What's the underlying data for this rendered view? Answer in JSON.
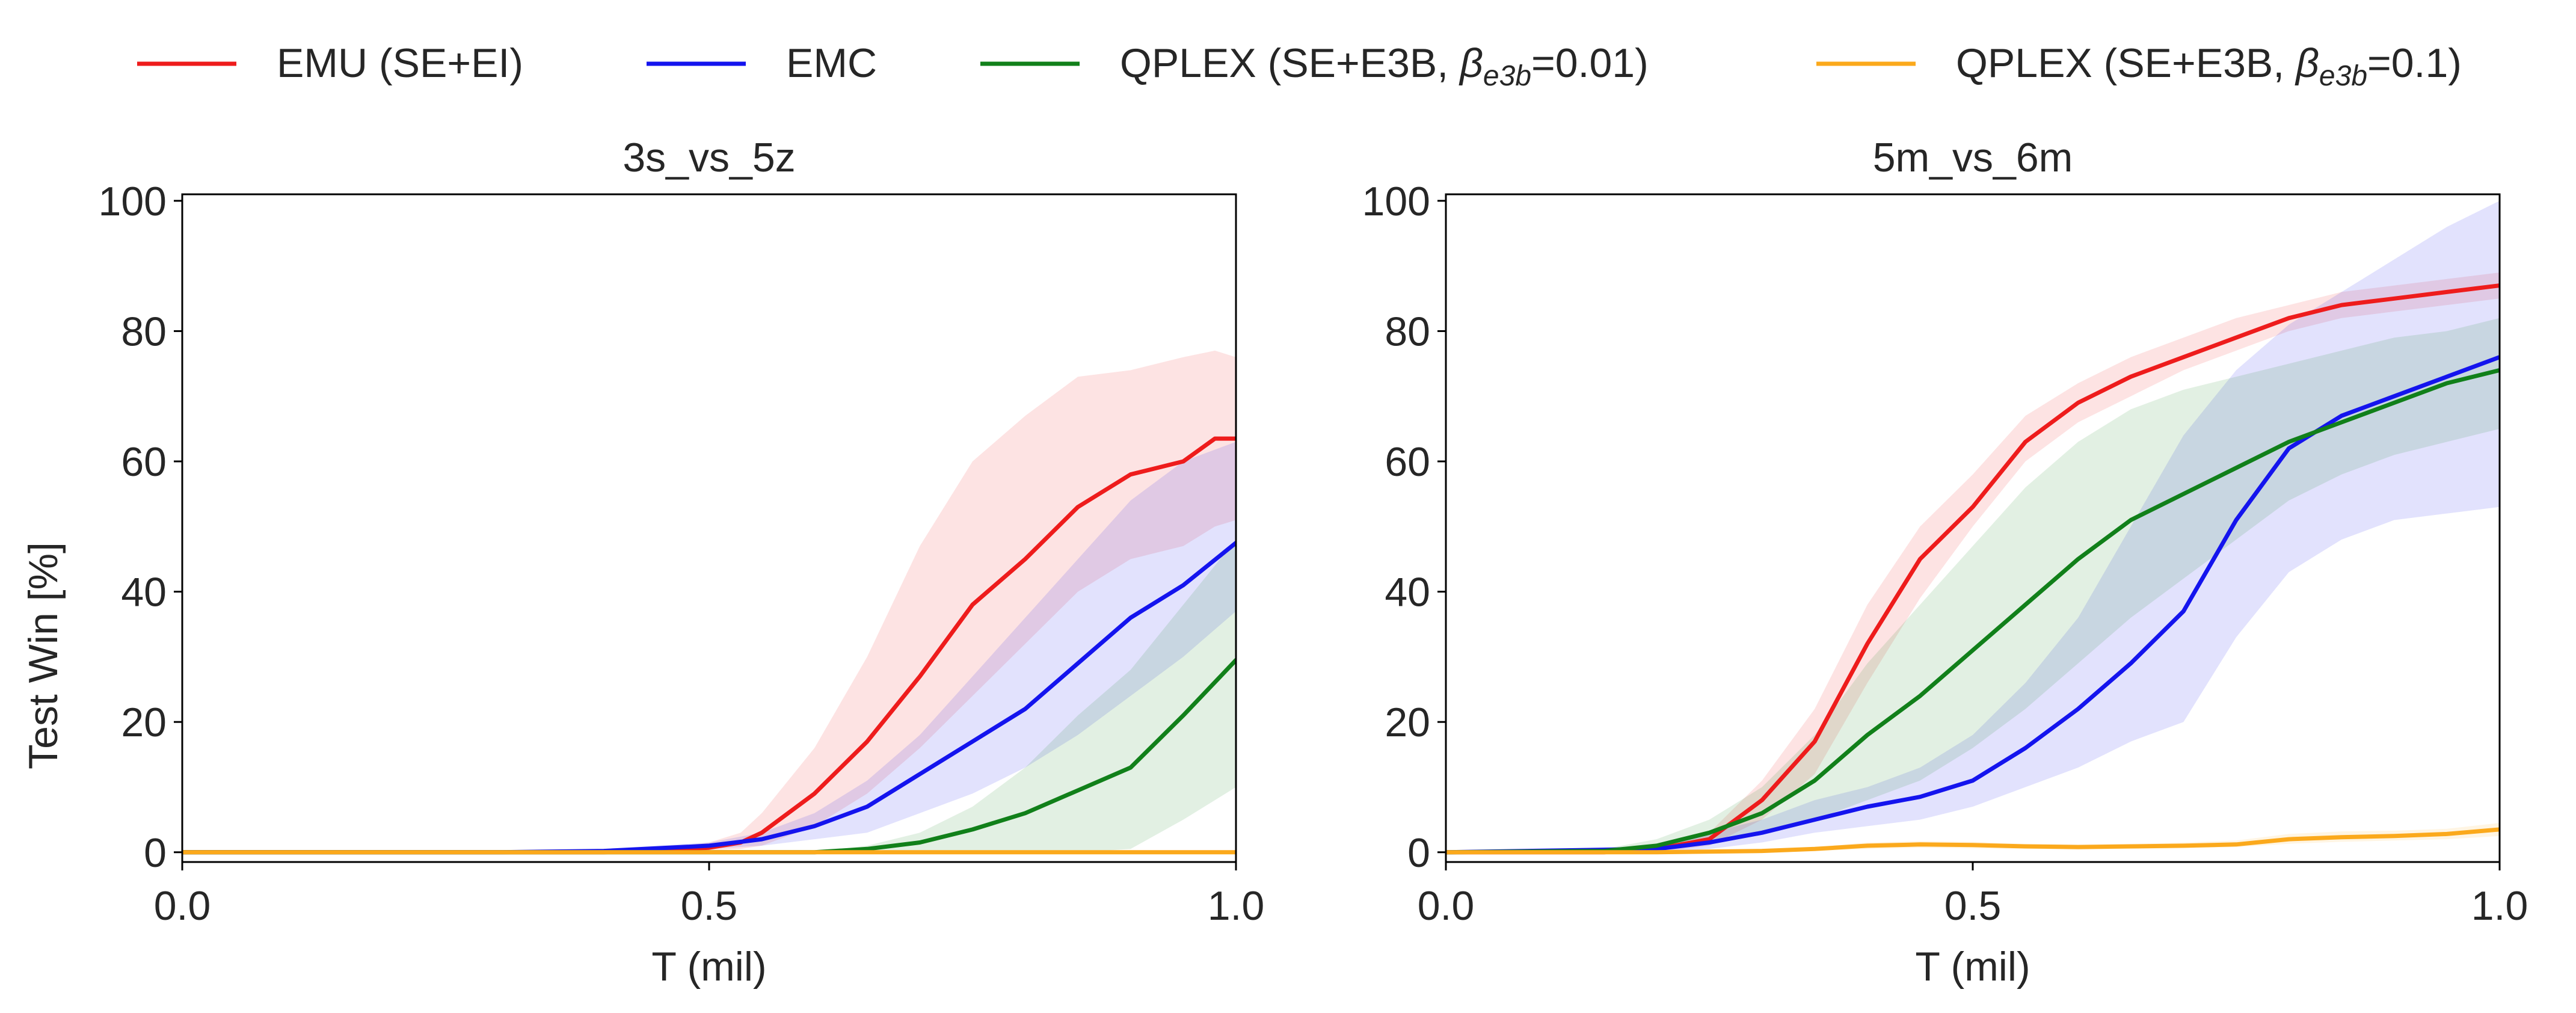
{
  "figure": {
    "ylabel_shared": "Test Win [%]"
  },
  "legend": [
    {
      "key": "emu",
      "label": "EMU (SE+EI)",
      "color": "#ee1c1c"
    },
    {
      "key": "emc",
      "label": "EMC",
      "color": "#1414ee"
    },
    {
      "key": "qplex001",
      "label": "QPLEX (SE+E3B, ",
      "sym": "β",
      "sub": "e3b",
      "tail": "=0.01)",
      "color": "#11801a"
    },
    {
      "key": "qplex01",
      "label": "QPLEX (SE+E3B, ",
      "sym": "β",
      "sub": "e3b",
      "tail": "=0.1)",
      "color": "#fba91c"
    }
  ],
  "chart_data": [
    {
      "type": "line",
      "title": "3s_vs_5z",
      "xlabel": "T (mil)",
      "ylabel": "Test Win [%]",
      "xlim": [
        0,
        1.0
      ],
      "ylim": [
        -1.5,
        101
      ],
      "xticks": [
        0.0,
        0.5,
        1.0
      ],
      "xtick_labels": [
        "0.0",
        "0.5",
        "1.0"
      ],
      "yticks": [
        0,
        20,
        40,
        60,
        80,
        100
      ],
      "ytick_labels": [
        "0",
        "20",
        "40",
        "60",
        "80",
        "100"
      ],
      "series": [
        {
          "key": "emu",
          "name": "EMU (SE+EI)",
          "color": "#ee1c1c",
          "x": [
            0,
            0.3,
            0.4,
            0.45,
            0.5,
            0.53,
            0.55,
            0.6,
            0.65,
            0.7,
            0.75,
            0.8,
            0.85,
            0.9,
            0.95,
            0.98,
            1.0
          ],
          "y": [
            0,
            0,
            0,
            0.3,
            0.7,
            1.5,
            3,
            9,
            17,
            27,
            38,
            45,
            53,
            58,
            60,
            63.5,
            63.5
          ],
          "lo": [
            0,
            0,
            0,
            0,
            0.3,
            0.5,
            1,
            4,
            9,
            16,
            24,
            32,
            40,
            45,
            47,
            50,
            51
          ],
          "hi": [
            0,
            0,
            0,
            0.5,
            1.5,
            3,
            6,
            16,
            30,
            47,
            60,
            67,
            73,
            74,
            76,
            77,
            76
          ]
        },
        {
          "key": "emc",
          "name": "EMC",
          "color": "#1414ee",
          "x": [
            0,
            0.3,
            0.4,
            0.45,
            0.5,
            0.55,
            0.6,
            0.65,
            0.7,
            0.75,
            0.8,
            0.85,
            0.9,
            0.95,
            1.0
          ],
          "y": [
            0,
            0,
            0.2,
            0.6,
            1,
            2,
            4,
            7,
            12,
            17,
            22,
            29,
            36,
            41,
            47.5
          ],
          "lo": [
            0,
            0,
            0,
            0.2,
            0.5,
            1,
            2,
            3,
            6,
            9,
            13,
            18,
            24,
            30,
            37
          ],
          "hi": [
            0,
            0,
            0.5,
            1,
            1.5,
            3,
            6,
            11,
            18,
            27,
            36,
            45,
            54,
            60,
            63
          ]
        },
        {
          "key": "qplex001",
          "name": "QPLEX (SE+E3B, β_e3b=0.01)",
          "color": "#11801a",
          "x": [
            0,
            0.6,
            0.65,
            0.7,
            0.75,
            0.8,
            0.85,
            0.9,
            0.95,
            1.0
          ],
          "y": [
            0,
            0,
            0.5,
            1.5,
            3.5,
            6,
            9.5,
            13,
            21,
            29.5
          ],
          "lo": [
            0,
            0,
            0,
            0,
            0,
            0,
            0,
            0.5,
            5,
            10
          ],
          "hi": [
            0,
            0,
            1,
            3,
            7,
            13,
            21,
            28,
            38,
            48
          ]
        },
        {
          "key": "qplex01",
          "name": "QPLEX (SE+E3B, β_e3b=0.1)",
          "color": "#fba91c",
          "x": [
            0,
            0.5,
            1.0
          ],
          "y": [
            0,
            0,
            0
          ],
          "lo": [
            0,
            0,
            0
          ],
          "hi": [
            0,
            0,
            0
          ]
        }
      ]
    },
    {
      "type": "line",
      "title": "5m_vs_6m",
      "xlabel": "T (mil)",
      "ylabel": "",
      "xlim": [
        0,
        1.0
      ],
      "ylim": [
        -1.5,
        101
      ],
      "xticks": [
        0.0,
        0.5,
        1.0
      ],
      "xtick_labels": [
        "0.0",
        "0.5",
        "1.0"
      ],
      "yticks": [
        0,
        20,
        40,
        60,
        80,
        100
      ],
      "ytick_labels": [
        "0",
        "20",
        "40",
        "60",
        "80",
        "100"
      ],
      "series": [
        {
          "key": "emu",
          "name": "EMU (SE+EI)",
          "color": "#ee1c1c",
          "x": [
            0,
            0.15,
            0.2,
            0.25,
            0.3,
            0.35,
            0.4,
            0.45,
            0.5,
            0.55,
            0.6,
            0.65,
            0.7,
            0.75,
            0.8,
            0.85,
            0.9,
            0.95,
            1.0
          ],
          "y": [
            0,
            0,
            0.5,
            2,
            8,
            17,
            32,
            45,
            53,
            63,
            69,
            73,
            76,
            79,
            82,
            84,
            85,
            86,
            87
          ],
          "lo": [
            0,
            0,
            0,
            1,
            5,
            12,
            26,
            39,
            50,
            60,
            66,
            70,
            74,
            77,
            80,
            82,
            83,
            84,
            85
          ],
          "hi": [
            0,
            0,
            1,
            3,
            11,
            22,
            38,
            50,
            58,
            67,
            72,
            76,
            79,
            82,
            84,
            86,
            87,
            88,
            89
          ]
        },
        {
          "key": "emc",
          "name": "EMC",
          "color": "#1414ee",
          "x": [
            0,
            0.2,
            0.25,
            0.3,
            0.35,
            0.4,
            0.45,
            0.5,
            0.55,
            0.6,
            0.65,
            0.7,
            0.75,
            0.8,
            0.85,
            0.9,
            0.95,
            1.0
          ],
          "y": [
            0,
            0.5,
            1.5,
            3,
            5,
            7,
            8.5,
            11,
            16,
            22,
            29,
            37,
            51,
            62,
            67,
            70,
            73,
            76
          ],
          "lo": [
            0,
            0,
            0.5,
            1.5,
            3,
            4,
            5,
            7,
            10,
            13,
            17,
            20,
            33,
            43,
            48,
            51,
            52,
            53
          ],
          "hi": [
            0,
            1,
            3,
            5,
            8,
            10,
            13,
            18,
            26,
            36,
            50,
            64,
            74,
            81,
            86,
            91,
            96,
            100
          ]
        },
        {
          "key": "qplex001",
          "name": "QPLEX (SE+E3B, β_e3b=0.01)",
          "color": "#11801a",
          "x": [
            0,
            0.15,
            0.2,
            0.25,
            0.3,
            0.35,
            0.4,
            0.45,
            0.5,
            0.55,
            0.6,
            0.65,
            0.7,
            0.75,
            0.8,
            0.85,
            0.9,
            0.95,
            1.0
          ],
          "y": [
            0,
            0.2,
            1,
            3,
            6,
            11,
            18,
            24,
            31,
            38,
            45,
            51,
            55,
            59,
            63,
            66,
            69,
            72,
            74
          ],
          "lo": [
            0,
            0,
            0.5,
            1.5,
            3,
            5,
            8,
            11,
            16,
            22,
            29,
            36,
            42,
            48,
            54,
            58,
            61,
            63,
            65
          ],
          "hi": [
            0,
            0.5,
            2,
            5,
            10,
            18,
            29,
            38,
            47,
            56,
            63,
            68,
            71,
            73,
            75,
            77,
            79,
            80,
            82
          ]
        },
        {
          "key": "qplex01",
          "name": "QPLEX (SE+E3B, β_e3b=0.1)",
          "color": "#fba91c",
          "x": [
            0,
            0.2,
            0.3,
            0.35,
            0.4,
            0.45,
            0.5,
            0.55,
            0.6,
            0.65,
            0.7,
            0.75,
            0.8,
            0.85,
            0.9,
            0.95,
            1.0
          ],
          "y": [
            0,
            0,
            0.2,
            0.5,
            1,
            1.2,
            1.1,
            0.9,
            0.8,
            0.9,
            1,
            1.2,
            2,
            2.3,
            2.5,
            2.8,
            3.5
          ],
          "lo": [
            0,
            0,
            0,
            0.2,
            0.5,
            0.7,
            0.6,
            0.5,
            0.4,
            0.5,
            0.6,
            0.8,
            1.3,
            1.6,
            1.8,
            2,
            2.5
          ],
          "hi": [
            0,
            0,
            0.4,
            0.8,
            1.5,
            1.7,
            1.6,
            1.3,
            1.2,
            1.3,
            1.5,
            1.8,
            2.8,
            3.2,
            3.3,
            3.6,
            4.5
          ]
        }
      ]
    }
  ]
}
